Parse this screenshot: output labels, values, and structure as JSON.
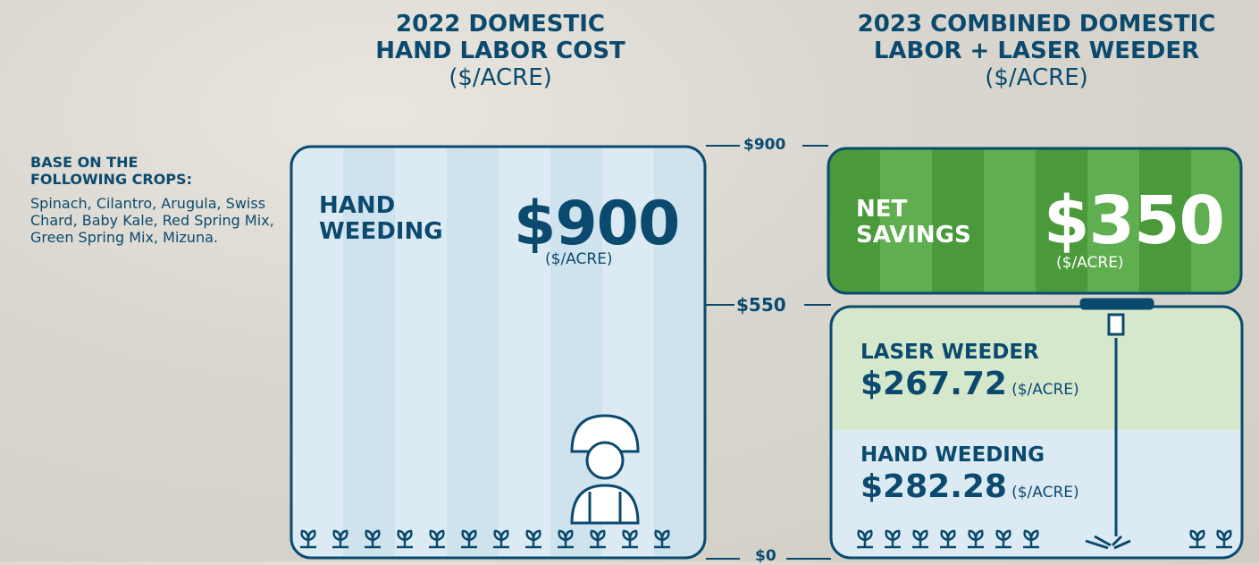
{
  "headings": [
    {
      "lines": [
        "2022 DOMESTIC",
        "HAND LABOR COST"
      ],
      "unit": "($/ACRE)"
    },
    {
      "lines": [
        "2023 COMBINED DOMESTIC",
        "LABOR + LASER WEEDER"
      ],
      "unit": "($/ACRE)"
    }
  ],
  "note": {
    "title_lines": [
      "BASE ON THE",
      "FOLLOWING CROPS:"
    ],
    "text": "Spinach, Cilantro, Arugula, Swiss Chard, Baby Kale, Red Spring Mix, Green Spring Mix, Mizuna."
  },
  "axis_labels": [
    "$900",
    "$550",
    "$0"
  ],
  "hand_box": {
    "label_lines": [
      "HAND",
      "WEEDING"
    ],
    "amount": "$900",
    "unit": "($/ACRE)"
  },
  "savings_box": {
    "label_lines": [
      "NET",
      "SAVINGS"
    ],
    "amount": "$350",
    "unit": "($/ACRE)"
  },
  "laser_box": {
    "label": "LASER WEEDER",
    "amount": "$267.72",
    "unit": "($/ACRE)"
  },
  "hand_part": {
    "label": "HAND WEEDING",
    "amount": "$282.28",
    "unit": "($/ACRE)"
  }
}
